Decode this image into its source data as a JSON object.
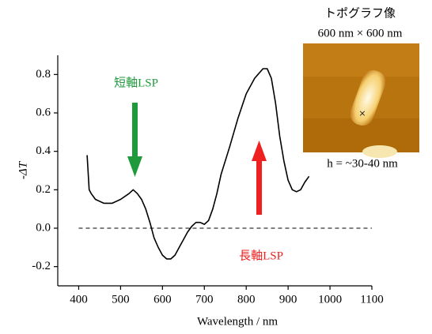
{
  "chart_data": {
    "type": "line",
    "x_label": "Wavelength / nm",
    "y_label": "-ΔT",
    "x": [
      420,
      425,
      430,
      440,
      460,
      480,
      500,
      520,
      530,
      540,
      550,
      560,
      570,
      580,
      590,
      600,
      610,
      620,
      630,
      640,
      650,
      660,
      670,
      680,
      690,
      700,
      710,
      720,
      730,
      740,
      760,
      780,
      800,
      820,
      840,
      850,
      860,
      870,
      880,
      890,
      900,
      910,
      920,
      930,
      940,
      950
    ],
    "values": [
      0.38,
      0.2,
      0.18,
      0.15,
      0.13,
      0.13,
      0.15,
      0.18,
      0.2,
      0.18,
      0.15,
      0.1,
      0.03,
      -0.05,
      -0.1,
      -0.14,
      -0.16,
      -0.16,
      -0.14,
      -0.1,
      -0.06,
      -0.02,
      0.01,
      0.03,
      0.03,
      0.02,
      0.04,
      0.1,
      0.18,
      0.28,
      0.42,
      0.57,
      0.7,
      0.78,
      0.83,
      0.83,
      0.78,
      0.65,
      0.48,
      0.35,
      0.25,
      0.2,
      0.19,
      0.2,
      0.24,
      0.27
    ],
    "color": "#000000",
    "xlim": [
      350,
      1100
    ],
    "ylim": [
      -0.3,
      0.9
    ],
    "xticks": [
      400,
      500,
      600,
      700,
      800,
      900,
      1000,
      1100
    ],
    "yticks": [
      -0.2,
      {
        "value": 0,
        "label": "0.0"
      },
      0.2,
      0.4,
      0.6,
      0.8
    ],
    "hline": 0,
    "annotations": [
      {
        "text": "短軸LSP",
        "color": "#1e9a3c"
      },
      {
        "text": "長軸LSP",
        "color": "#ee2020"
      }
    ],
    "inset": {
      "title": "トポグラフ像",
      "size": "600 nm × 600 nm",
      "height": "h = ~30-40 nm"
    }
  }
}
